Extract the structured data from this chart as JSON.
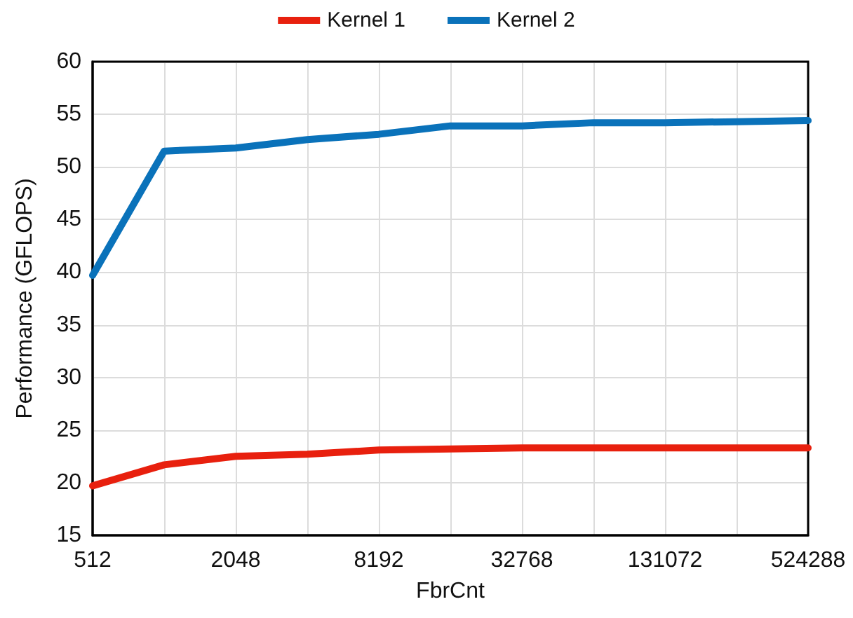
{
  "chart_data": {
    "type": "line",
    "xlabel": "FbrCnt",
    "ylabel": "Performance (GFLOPS)",
    "categories": [
      "512",
      null,
      "2048",
      null,
      "8192",
      null,
      "32768",
      null,
      "131072",
      null,
      "524288"
    ],
    "series": [
      {
        "name": "Kernel 1",
        "color": "#e8200e",
        "values": [
          19.7,
          21.7,
          22.5,
          22.7,
          23.1,
          23.2,
          23.3,
          23.3,
          23.3,
          23.3,
          23.3
        ]
      },
      {
        "name": "Kernel 2",
        "color": "#0a72ba",
        "values": [
          39.7,
          51.5,
          51.8,
          52.6,
          53.1,
          53.9,
          53.9,
          54.2,
          54.2,
          54.3,
          54.4
        ]
      }
    ],
    "ylim": [
      15,
      60
    ],
    "yticks": [
      15,
      20,
      25,
      30,
      35,
      40,
      45,
      50,
      55,
      60
    ],
    "grid": true,
    "legend": "top",
    "marker": "none",
    "line_style": "solid"
  }
}
